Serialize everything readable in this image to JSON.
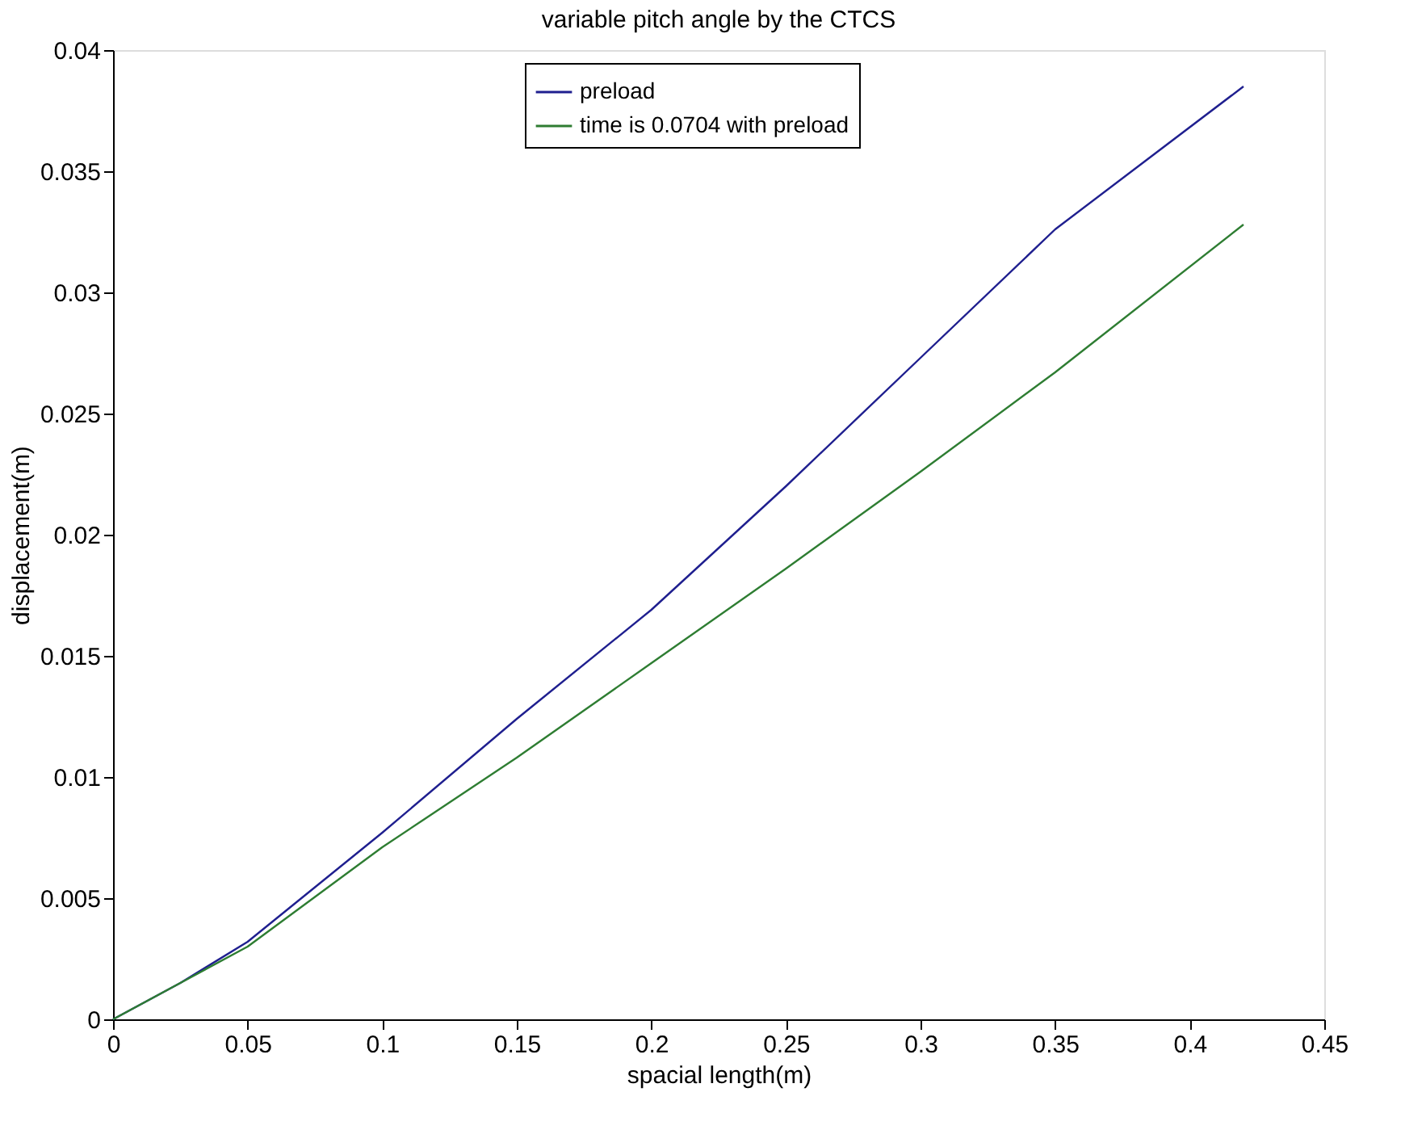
{
  "chart_data": {
    "type": "line",
    "title": "variable pitch angle by the CTCS",
    "xlabel": "spacial length(m)",
    "ylabel": "displacement(m)",
    "x": [
      0,
      0.025,
      0.05,
      0.1,
      0.15,
      0.2,
      0.25,
      0.3,
      0.35,
      0.42
    ],
    "series": [
      {
        "name": "preload",
        "color": "#1f1f8f",
        "values": [
          0,
          0.0015,
          0.0032,
          0.0077,
          0.0124,
          0.0169,
          0.022,
          0.0273,
          0.0326,
          0.0385
        ]
      },
      {
        "name": "time is 0.0704 with preload",
        "color": "#2e7d32",
        "values": [
          0,
          0.0015,
          0.003,
          0.0071,
          0.0108,
          0.0147,
          0.0186,
          0.0226,
          0.0267,
          0.0328
        ]
      }
    ],
    "xlim": [
      0,
      0.45
    ],
    "xticks": [
      {
        "value": 0,
        "label": "0"
      },
      0.05,
      0.1,
      0.15,
      0.2,
      0.25,
      0.3,
      0.35,
      0.4,
      0.45
    ],
    "ylim": [
      0,
      0.04
    ],
    "yticks": [
      0,
      0.005,
      0.01,
      0.015,
      0.02,
      0.025,
      0.03,
      0.035,
      0.04
    ],
    "grid": false,
    "legend": "top",
    "line_style": "solid",
    "marker": "none"
  }
}
